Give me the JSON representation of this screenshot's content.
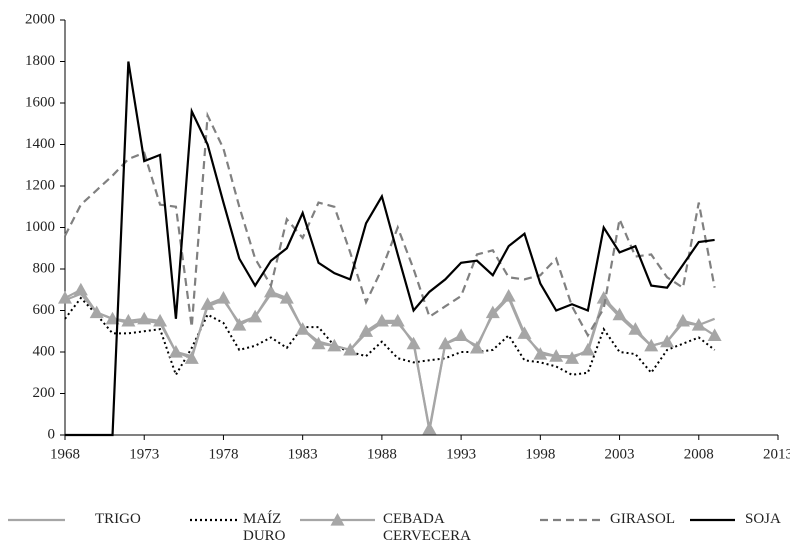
{
  "chart_data": {
    "type": "line",
    "x": [
      1968,
      1969,
      1970,
      1971,
      1972,
      1973,
      1974,
      1975,
      1976,
      1977,
      1978,
      1979,
      1980,
      1981,
      1982,
      1983,
      1984,
      1985,
      1986,
      1987,
      1988,
      1989,
      1990,
      1991,
      1992,
      1993,
      1994,
      1995,
      1996,
      1997,
      1998,
      1999,
      2000,
      2001,
      2002,
      2003,
      2004,
      2005,
      2006,
      2007,
      2008,
      2009
    ],
    "series": [
      {
        "name": "TRIGO",
        "color": "#a6a6a6",
        "dash": "solid",
        "values": [
          650,
          680,
          590,
          560,
          540,
          550,
          540,
          400,
          380,
          620,
          650,
          540,
          570,
          680,
          650,
          510,
          450,
          430,
          410,
          490,
          540,
          540,
          450,
          20,
          440,
          470,
          430,
          580,
          660,
          480,
          400,
          380,
          380,
          400,
          650,
          570,
          500,
          430,
          450,
          540,
          530,
          560
        ]
      },
      {
        "name": "MAÍZ DURO",
        "color": "#000000",
        "dash": "dotted",
        "values": [
          560,
          660,
          580,
          490,
          490,
          500,
          510,
          290,
          420,
          580,
          540,
          410,
          430,
          470,
          420,
          520,
          520,
          430,
          400,
          380,
          450,
          370,
          350,
          360,
          370,
          400,
          400,
          410,
          480,
          360,
          350,
          330,
          290,
          300,
          510,
          400,
          390,
          300,
          410,
          440,
          470,
          410
        ]
      },
      {
        "name": "CEBADA CERVECERA",
        "color": "#a6a6a6",
        "dash": "solid",
        "marker": "triangle",
        "values": [
          660,
          700,
          590,
          560,
          550,
          560,
          550,
          400,
          370,
          630,
          660,
          530,
          570,
          690,
          660,
          510,
          440,
          430,
          410,
          500,
          550,
          550,
          440,
          30,
          440,
          480,
          420,
          590,
          670,
          490,
          390,
          380,
          370,
          410,
          660,
          580,
          510,
          430,
          450,
          550,
          530,
          480
        ]
      },
      {
        "name": "GIRASOL",
        "color": "#808080",
        "dash": "dashed",
        "values": [
          960,
          1110,
          1180,
          1250,
          1330,
          1360,
          1110,
          1100,
          520,
          1540,
          1380,
          1100,
          850,
          720,
          1040,
          950,
          1120,
          1100,
          880,
          640,
          800,
          1000,
          800,
          570,
          620,
          670,
          870,
          890,
          760,
          750,
          770,
          850,
          620,
          480,
          610,
          1040,
          860,
          870,
          760,
          710,
          1120,
          710
        ]
      },
      {
        "name": "SOJA",
        "color": "#000000",
        "dash": "solid",
        "values": [
          0,
          0,
          0,
          0,
          1800,
          1320,
          1350,
          560,
          1560,
          1400,
          1120,
          850,
          720,
          840,
          900,
          1070,
          830,
          780,
          750,
          1020,
          1150,
          870,
          600,
          690,
          750,
          830,
          840,
          770,
          910,
          970,
          730,
          600,
          630,
          600,
          1000,
          880,
          910,
          720,
          710,
          820,
          930,
          940
        ]
      }
    ],
    "xlim": [
      1968,
      2013
    ],
    "xticks": [
      1968,
      1973,
      1978,
      1983,
      1988,
      1993,
      1998,
      2003,
      2008,
      2013
    ],
    "ylim": [
      0,
      2000
    ],
    "yticks": [
      0,
      200,
      400,
      600,
      800,
      1000,
      1200,
      1400,
      1600,
      1800,
      2000
    ],
    "grid": false,
    "legend": "bottom"
  }
}
